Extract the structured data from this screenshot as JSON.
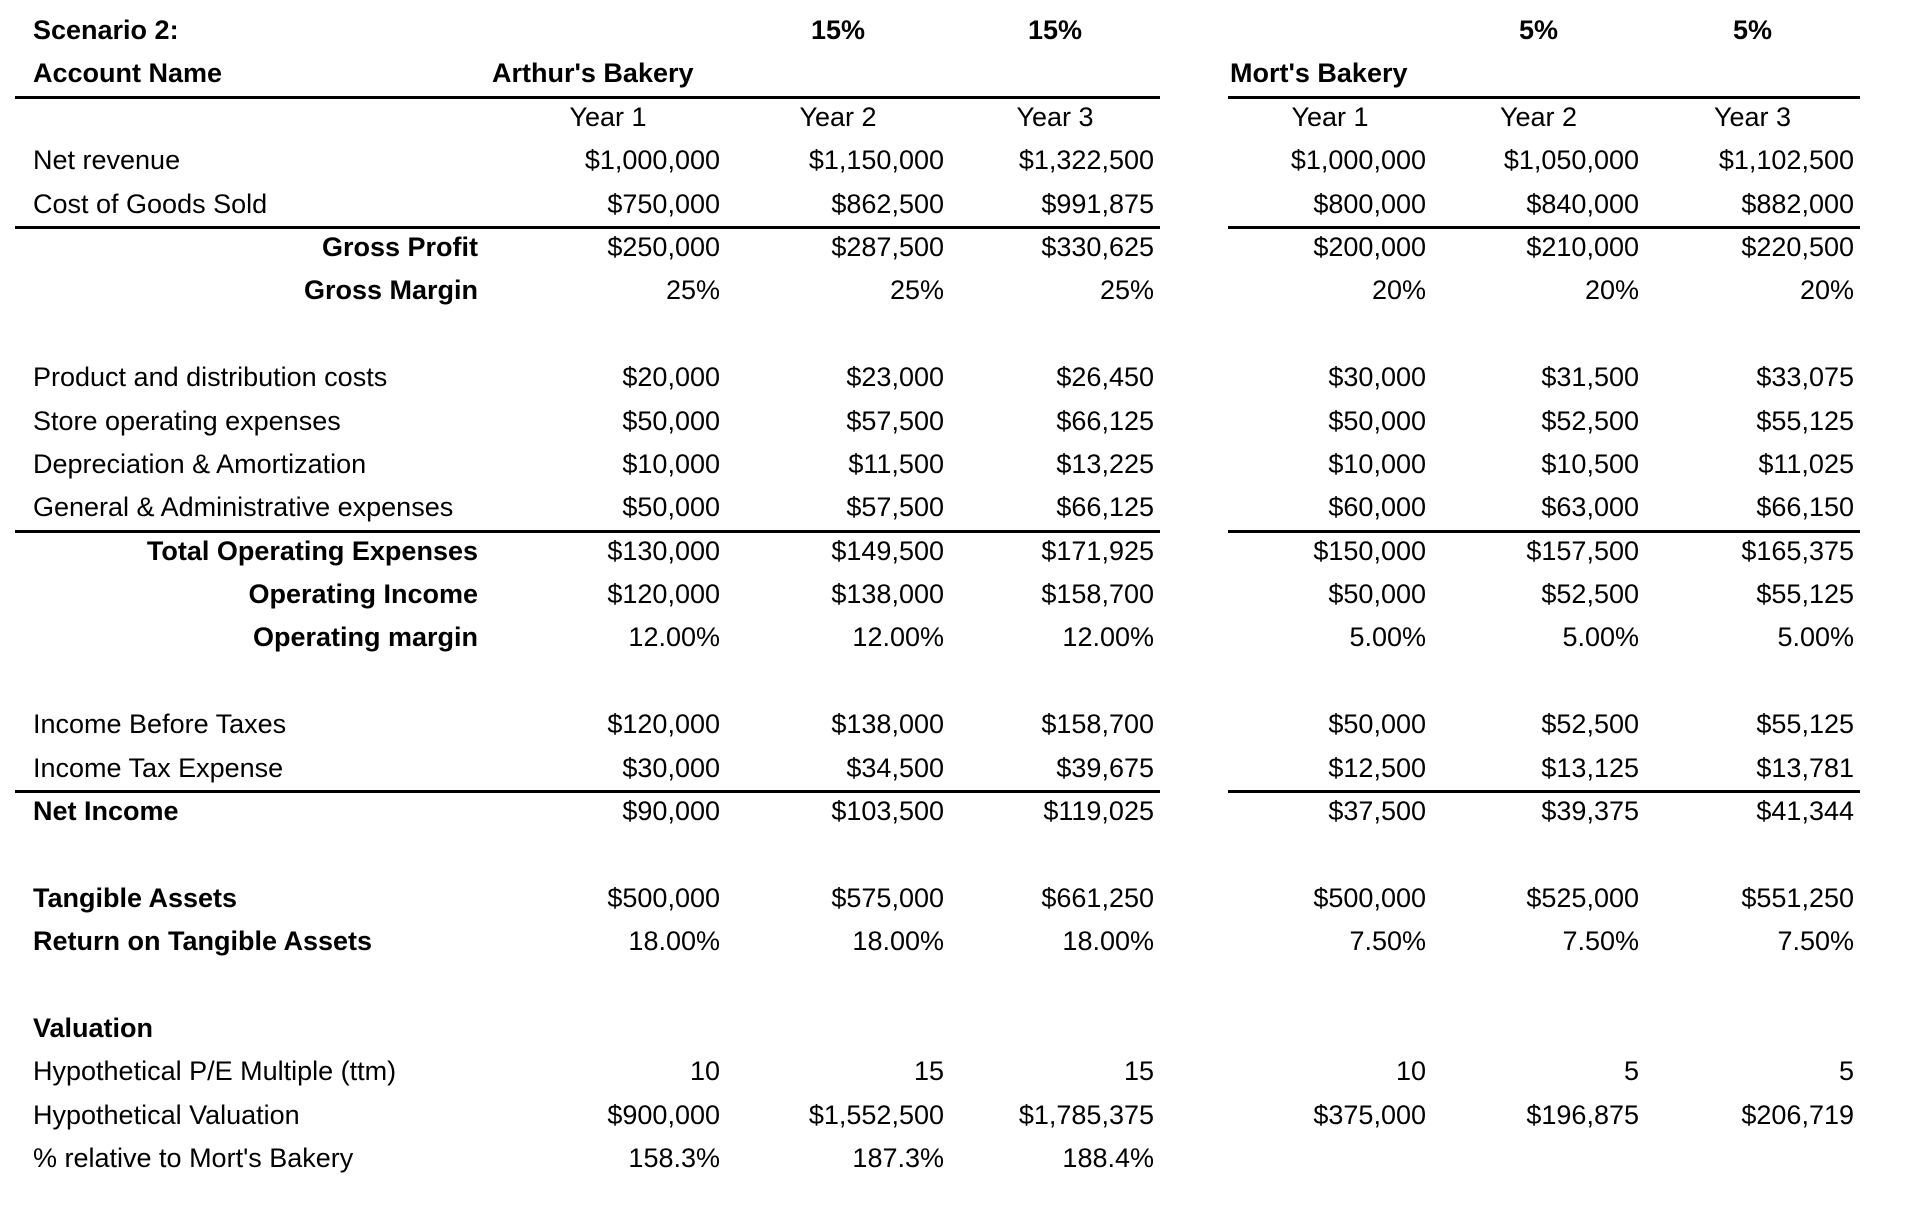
{
  "sheet": {
    "scenario_label": "Scenario 2:",
    "account_name_label": "Account Name",
    "left_table_title": "Arthur's Bakery",
    "right_table_title": "Mort's Bakery",
    "left_growth_rates": [
      "15%",
      "15%"
    ],
    "right_growth_rates": [
      "5%",
      "5%"
    ],
    "year_headers": [
      "Year 1",
      "Year 2",
      "Year 3"
    ]
  },
  "colors": {
    "text": "#000000",
    "background": "#ffffff",
    "rule": "#000000"
  },
  "rows": [
    {
      "label": "Net revenue",
      "label_align": "left",
      "label_bold": false,
      "rule_below": false,
      "arthur": [
        "$1,000,000",
        "$1,150,000",
        "$1,322,500"
      ],
      "mort": [
        "$1,000,000",
        "$1,050,000",
        "$1,102,500"
      ]
    },
    {
      "label": "Cost of Goods Sold",
      "label_align": "left",
      "label_bold": false,
      "rule_below": true,
      "arthur": [
        "$750,000",
        "$862,500",
        "$991,875"
      ],
      "mort": [
        "$800,000",
        "$840,000",
        "$882,000"
      ]
    },
    {
      "label": "Gross Profit",
      "label_align": "right",
      "label_bold": true,
      "rule_below": false,
      "arthur": [
        "$250,000",
        "$287,500",
        "$330,625"
      ],
      "mort": [
        "$200,000",
        "$210,000",
        "$220,500"
      ]
    },
    {
      "label": "Gross Margin",
      "label_align": "right",
      "label_bold": true,
      "rule_below": false,
      "arthur": [
        "25%",
        "25%",
        "25%"
      ],
      "mort": [
        "20%",
        "20%",
        "20%"
      ]
    },
    {
      "label": "",
      "label_align": "left",
      "label_bold": false,
      "rule_below": false,
      "arthur": [],
      "mort": []
    },
    {
      "label": "Product and distribution costs",
      "label_align": "left",
      "label_bold": false,
      "rule_below": false,
      "arthur": [
        "$20,000",
        "$23,000",
        "$26,450"
      ],
      "mort": [
        "$30,000",
        "$31,500",
        "$33,075"
      ]
    },
    {
      "label": "Store operating expenses",
      "label_align": "left",
      "label_bold": false,
      "rule_below": false,
      "arthur": [
        "$50,000",
        "$57,500",
        "$66,125"
      ],
      "mort": [
        "$50,000",
        "$52,500",
        "$55,125"
      ]
    },
    {
      "label": "Depreciation & Amortization",
      "label_align": "left",
      "label_bold": false,
      "rule_below": false,
      "arthur": [
        "$10,000",
        "$11,500",
        "$13,225"
      ],
      "mort": [
        "$10,000",
        "$10,500",
        "$11,025"
      ]
    },
    {
      "label": "General & Administrative expenses",
      "label_align": "left",
      "label_bold": false,
      "rule_below": true,
      "arthur": [
        "$50,000",
        "$57,500",
        "$66,125"
      ],
      "mort": [
        "$60,000",
        "$63,000",
        "$66,150"
      ]
    },
    {
      "label": "Total Operating Expenses",
      "label_align": "right",
      "label_bold": true,
      "rule_below": false,
      "arthur": [
        "$130,000",
        "$149,500",
        "$171,925"
      ],
      "mort": [
        "$150,000",
        "$157,500",
        "$165,375"
      ]
    },
    {
      "label": "Operating Income",
      "label_align": "right",
      "label_bold": true,
      "rule_below": false,
      "arthur": [
        "$120,000",
        "$138,000",
        "$158,700"
      ],
      "mort": [
        "$50,000",
        "$52,500",
        "$55,125"
      ]
    },
    {
      "label": "Operating margin",
      "label_align": "right",
      "label_bold": true,
      "rule_below": false,
      "arthur": [
        "12.00%",
        "12.00%",
        "12.00%"
      ],
      "mort": [
        "5.00%",
        "5.00%",
        "5.00%"
      ]
    },
    {
      "label": "",
      "label_align": "left",
      "label_bold": false,
      "rule_below": false,
      "arthur": [],
      "mort": []
    },
    {
      "label": "Income Before Taxes",
      "label_align": "left",
      "label_bold": false,
      "rule_below": false,
      "arthur": [
        "$120,000",
        "$138,000",
        "$158,700"
      ],
      "mort": [
        "$50,000",
        "$52,500",
        "$55,125"
      ]
    },
    {
      "label": "Income Tax Expense",
      "label_align": "left",
      "label_bold": false,
      "rule_below": true,
      "arthur": [
        "$30,000",
        "$34,500",
        "$39,675"
      ],
      "mort": [
        "$12,500",
        "$13,125",
        "$13,781"
      ]
    },
    {
      "label": "Net Income",
      "label_align": "left",
      "label_bold": true,
      "rule_below": false,
      "arthur": [
        "$90,000",
        "$103,500",
        "$119,025"
      ],
      "mort": [
        "$37,500",
        "$39,375",
        "$41,344"
      ]
    },
    {
      "label": "",
      "label_align": "left",
      "label_bold": false,
      "rule_below": false,
      "arthur": [],
      "mort": []
    },
    {
      "label": "Tangible Assets",
      "label_align": "left",
      "label_bold": true,
      "rule_below": false,
      "arthur": [
        "$500,000",
        "$575,000",
        "$661,250"
      ],
      "mort": [
        "$500,000",
        "$525,000",
        "$551,250"
      ]
    },
    {
      "label": "Return on Tangible Assets",
      "label_align": "left",
      "label_bold": true,
      "rule_below": false,
      "arthur": [
        "18.00%",
        "18.00%",
        "18.00%"
      ],
      "mort": [
        "7.50%",
        "7.50%",
        "7.50%"
      ]
    },
    {
      "label": "",
      "label_align": "left",
      "label_bold": false,
      "rule_below": false,
      "arthur": [],
      "mort": []
    },
    {
      "label": "Valuation",
      "label_align": "left",
      "label_bold": true,
      "rule_below": false,
      "arthur": [],
      "mort": []
    },
    {
      "label": "Hypothetical P/E Multiple (ttm)",
      "label_align": "left",
      "label_bold": false,
      "rule_below": false,
      "arthur": [
        "10",
        "15",
        "15"
      ],
      "mort": [
        "10",
        "5",
        "5"
      ]
    },
    {
      "label": "Hypothetical Valuation",
      "label_align": "left",
      "label_bold": false,
      "rule_below": false,
      "arthur": [
        "$900,000",
        "$1,552,500",
        "$1,785,375"
      ],
      "mort": [
        "$375,000",
        "$196,875",
        "$206,719"
      ]
    },
    {
      "label": "% relative to Mort's Bakery",
      "label_align": "left",
      "label_bold": false,
      "rule_below": false,
      "arthur": [
        "158.3%",
        "187.3%",
        "188.4%"
      ],
      "mort": [
        "",
        "",
        ""
      ]
    }
  ]
}
